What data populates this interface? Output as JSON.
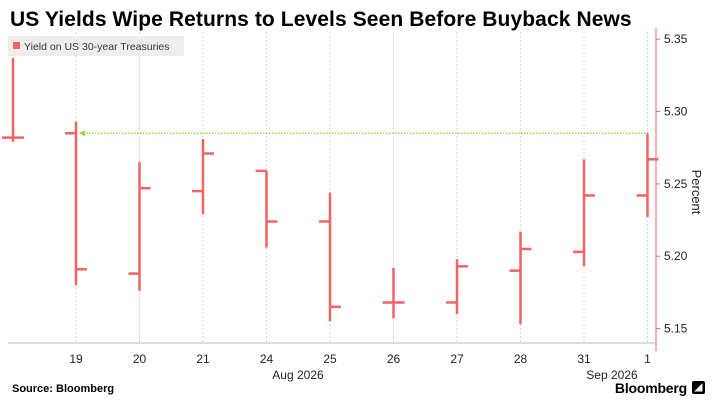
{
  "title": "US Yields Wipe Returns to Levels Seen Before Buyback News",
  "source": "Source: Bloomberg",
  "brand": "Bloomberg",
  "brand_mark": "◢",
  "colors": {
    "series": "#f06464",
    "reference": "#9bd43a",
    "legend_bg": "#eeeeee",
    "grid": "#d6d6d6"
  },
  "chart_data": {
    "type": "ohlc",
    "legend": "Yield on US 30-year Treasuries",
    "ylabel": "Percent",
    "ylim": [
      5.14,
      5.355
    ],
    "yticks": [
      "5.15",
      "5.20",
      "5.25",
      "5.30",
      "5.35"
    ],
    "ytick_values": [
      5.15,
      5.2,
      5.25,
      5.3,
      5.35
    ],
    "x_tick_labels": [
      "19",
      "20",
      "21",
      "24",
      "25",
      "26",
      "27",
      "28",
      "31",
      "1"
    ],
    "x_period_labels": [
      "Aug 2026",
      "Sep 2026"
    ],
    "reference_line": 5.285,
    "bars": [
      {
        "date": "Aug 18, 2026",
        "open": 5.282,
        "high": 5.337,
        "low": 5.279,
        "close": 5.282
      },
      {
        "date": "Aug 19, 2026",
        "open": 5.285,
        "high": 5.293,
        "low": 5.18,
        "close": 5.191
      },
      {
        "date": "Aug 20, 2026",
        "open": 5.188,
        "high": 5.265,
        "low": 5.176,
        "close": 5.247
      },
      {
        "date": "Aug 21, 2026",
        "open": 5.245,
        "high": 5.281,
        "low": 5.229,
        "close": 5.271
      },
      {
        "date": "Aug 24, 2026",
        "open": 5.259,
        "high": 5.259,
        "low": 5.206,
        "close": 5.224
      },
      {
        "date": "Aug 25, 2026",
        "open": 5.224,
        "high": 5.244,
        "low": 5.155,
        "close": 5.165
      },
      {
        "date": "Aug 26, 2026",
        "open": 5.168,
        "high": 5.192,
        "low": 5.157,
        "close": 5.168
      },
      {
        "date": "Aug 27, 2026",
        "open": 5.168,
        "high": 5.198,
        "low": 5.16,
        "close": 5.193
      },
      {
        "date": "Aug 28, 2026",
        "open": 5.19,
        "high": 5.217,
        "low": 5.153,
        "close": 5.205
      },
      {
        "date": "Aug 31, 2026",
        "open": 5.203,
        "high": 5.267,
        "low": 5.193,
        "close": 5.242
      },
      {
        "date": "Sep 1, 2026",
        "open": 5.242,
        "high": 5.285,
        "low": 5.227,
        "close": 5.267
      }
    ]
  }
}
